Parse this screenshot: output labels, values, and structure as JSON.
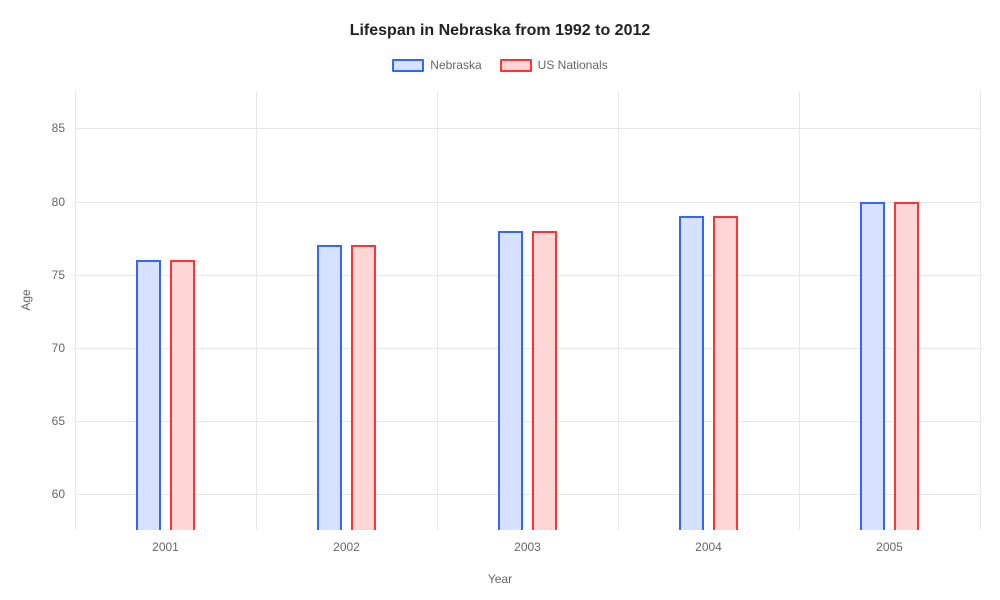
{
  "chart": {
    "type": "bar",
    "title": "Lifespan in Nebraska from 1992 to 2012",
    "title_fontsize": 16,
    "xlabel": "Year",
    "ylabel": "Age",
    "label_fontsize": 12,
    "background_color": "#ffffff",
    "grid_color": "#e6e6e6",
    "tick_color": "#666666",
    "categories": [
      "2001",
      "2002",
      "2003",
      "2004",
      "2005"
    ],
    "series": [
      {
        "name": "Nebraska",
        "values": [
          76,
          77,
          78,
          79,
          80
        ],
        "border_color": "#3366ff",
        "fill_color": "#d6e0ff"
      },
      {
        "name": "US Nationals",
        "values": [
          76,
          77,
          78,
          79,
          80
        ],
        "border_color": "#ff3333",
        "fill_color": "#ffd6d6"
      }
    ],
    "ylim": [
      57.5,
      87.5
    ],
    "yticks": [
      60,
      65,
      70,
      75,
      80,
      85
    ],
    "bar_width_pct": 2.8,
    "bar_gap_pct": 1.0,
    "group_spacing_pct": 20
  }
}
